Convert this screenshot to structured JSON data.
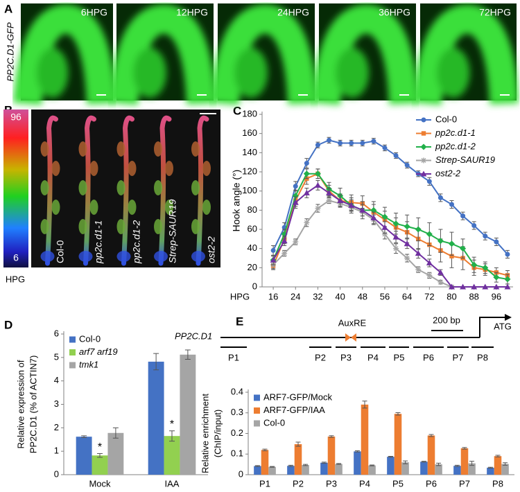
{
  "panel_labels": [
    "A",
    "B",
    "C",
    "D",
    "E"
  ],
  "panel_a": {
    "side_label": "PP2C.D1-GFP",
    "image_labels": [
      "6HPG",
      "12HPG",
      "24HPG",
      "36HPG",
      "72HPG"
    ]
  },
  "panel_b": {
    "colorbar_top": "96",
    "colorbar_bottom": "6",
    "colorbar_label": "HPG",
    "image_labels": [
      "Col-0",
      "pp2c.d1-1",
      "pp2c.d1-2",
      "Strep-SAUR19",
      "ost2-2"
    ]
  },
  "panel_e_diagram": {
    "gene": "PP2C.D1",
    "element": "AuxRE",
    "scale": "200 bp",
    "start": "ATG",
    "fragments": [
      "P1",
      "P2",
      "P3",
      "P4",
      "P5",
      "P6",
      "P7",
      "P8"
    ]
  },
  "chart_data": [
    {
      "type": "line",
      "ylabel": "Hook angle (°)",
      "xlabel": "HPG",
      "x": [
        16,
        20,
        24,
        28,
        32,
        36,
        40,
        44,
        48,
        52,
        56,
        60,
        64,
        68,
        72,
        76,
        80,
        84,
        88,
        92,
        96,
        100
      ],
      "xlim": [
        12,
        102
      ],
      "xticks": [
        16,
        24,
        32,
        40,
        48,
        56,
        64,
        72,
        80,
        88,
        96
      ],
      "ylim": [
        0,
        180
      ],
      "yticks": [
        0,
        20,
        40,
        60,
        80,
        100,
        120,
        140,
        160,
        180
      ],
      "legend": "upper right",
      "series": [
        {
          "name": "Col-0",
          "color": "#4472c4",
          "marker": "circle",
          "values": [
            38,
            62,
            105,
            129,
            148,
            153,
            150,
            150,
            150,
            152,
            145,
            137,
            127,
            118,
            110,
            93,
            86,
            74,
            64,
            53,
            47,
            34
          ],
          "errors": [
            5,
            5,
            5,
            5,
            3,
            3,
            3,
            3,
            3,
            3,
            3,
            3,
            3,
            3,
            4,
            4,
            4,
            4,
            4,
            4,
            4,
            4
          ]
        },
        {
          "name": "pp2c.d1-1",
          "color": "#ed7d31",
          "marker": "square",
          "italic": true,
          "values": [
            22,
            50,
            90,
            113,
            118,
            100,
            90,
            88,
            87,
            78,
            70,
            62,
            57,
            50,
            44,
            38,
            32,
            30,
            20,
            18,
            15,
            12
          ],
          "errors": [
            4,
            5,
            6,
            6,
            5,
            6,
            7,
            8,
            8,
            8,
            9,
            10,
            11,
            11,
            11,
            12,
            12,
            12,
            8,
            6,
            5,
            5
          ]
        },
        {
          "name": "pp2c.d1-2",
          "color": "#21b04a",
          "marker": "diamond",
          "italic": true,
          "values": [
            28,
            55,
            95,
            118,
            118,
            102,
            95,
            85,
            80,
            80,
            73,
            66,
            63,
            60,
            55,
            48,
            45,
            40,
            23,
            20,
            10,
            8
          ],
          "errors": [
            4,
            5,
            6,
            5,
            5,
            7,
            8,
            8,
            9,
            9,
            10,
            11,
            12,
            12,
            12,
            12,
            12,
            10,
            8,
            6,
            5,
            5
          ]
        },
        {
          "name": "Strep-SAUR19",
          "color": "#a5a5a5",
          "marker": "star",
          "italic": true,
          "values": [
            23,
            35,
            47,
            67,
            82,
            90,
            87,
            83,
            78,
            70,
            55,
            40,
            30,
            18,
            12,
            5,
            0,
            null,
            null,
            null,
            null,
            null
          ],
          "errors": [
            4,
            3,
            3,
            4,
            4,
            3,
            3,
            4,
            4,
            5,
            5,
            5,
            4,
            3,
            3,
            2,
            1,
            null,
            null,
            null,
            null,
            null
          ]
        },
        {
          "name": "ost2-2",
          "color": "#7030a0",
          "marker": "triangle",
          "italic": true,
          "values": [
            28,
            48,
            88,
            98,
            106,
            98,
            90,
            85,
            80,
            72,
            62,
            52,
            45,
            35,
            25,
            15,
            0,
            0,
            0,
            0,
            0,
            0
          ],
          "errors": [
            5,
            5,
            6,
            5,
            5,
            5,
            6,
            6,
            6,
            6,
            6,
            6,
            5,
            5,
            4,
            3,
            0,
            0,
            0,
            0,
            0,
            0
          ]
        }
      ]
    },
    {
      "type": "bar",
      "ylabel": [
        "Relative expression of",
        "PP2C.D1 (% of ACTIN7)"
      ],
      "categories": [
        "Mock",
        "IAA"
      ],
      "ylim": [
        0,
        6
      ],
      "yticks": [
        0,
        1,
        2,
        3,
        4,
        5,
        6
      ],
      "legend": "upper left",
      "annotations": [
        "*",
        "*"
      ],
      "series": [
        {
          "name": "Col-0",
          "color": "#4472c4",
          "values": [
            1.62,
            4.82
          ],
          "errors": [
            0.04,
            0.35
          ]
        },
        {
          "name": "arf7 arf19",
          "color": "#92d050",
          "italic": true,
          "values": [
            0.82,
            1.65
          ],
          "errors": [
            0.08,
            0.22
          ]
        },
        {
          "name": "tmk1",
          "color": "#a5a5a5",
          "italic": true,
          "values": [
            1.78,
            5.12
          ],
          "errors": [
            0.22,
            0.2
          ]
        }
      ]
    },
    {
      "type": "bar",
      "ylabel": [
        "Relative enrichment",
        "(ChIP/input)"
      ],
      "categories": [
        "P1",
        "P2",
        "P3",
        "P4",
        "P5",
        "P6",
        "P7",
        "P8"
      ],
      "ylim": [
        0,
        0.4
      ],
      "yticks": [
        0,
        0.1,
        0.2,
        0.3,
        0.4
      ],
      "legend": "upper left",
      "series": [
        {
          "name": "ARF7-GFP/Mock",
          "color": "#4472c4",
          "values": [
            0.042,
            0.043,
            0.058,
            0.113,
            0.087,
            0.063,
            0.043,
            0.034
          ],
          "errors": [
            0.002,
            0.003,
            0.003,
            0.003,
            0.002,
            0.002,
            0.003,
            0.002
          ]
        },
        {
          "name": "ARF7-GFP/IAA",
          "color": "#ed7d31",
          "values": [
            0.12,
            0.148,
            0.185,
            0.34,
            0.295,
            0.19,
            0.128,
            0.09
          ],
          "errors": [
            0.004,
            0.01,
            0.004,
            0.017,
            0.006,
            0.005,
            0.004,
            0.004
          ]
        },
        {
          "name": "Col-0",
          "color": "#a5a5a5",
          "values": [
            0.038,
            0.047,
            0.052,
            0.045,
            0.06,
            0.05,
            0.055,
            0.052
          ],
          "errors": [
            0.002,
            0.003,
            0.002,
            0.002,
            0.007,
            0.006,
            0.01,
            0.006
          ]
        }
      ]
    }
  ]
}
